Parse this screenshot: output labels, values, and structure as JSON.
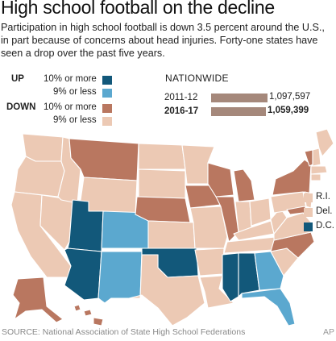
{
  "title": "High school football on the decline",
  "subtitle": "Participation in high school football is down 3.5 percent around the U.S., in part because of concerns about head injuries. Forty-one states have seen a drop over the past five years.",
  "legend": {
    "up_label": "UP",
    "down_label": "DOWN",
    "up_strong": "10% or more",
    "up_weak": "9% or less",
    "down_strong": "10% or more",
    "down_weak": "9% or less"
  },
  "colors": {
    "up_strong": "#12587a",
    "up_weak": "#5ba8cf",
    "down_strong": "#b97760",
    "down_weak": "#ecc9b4",
    "bar": "#a5887b"
  },
  "nationwide": {
    "heading": "NATIONWIDE",
    "rows": [
      {
        "label": "2011-12",
        "value": "1,097,597",
        "number": 1097597
      },
      {
        "label": "2016-17",
        "value": "1,059,399",
        "number": 1059399
      }
    ]
  },
  "small_states": [
    {
      "label": "R.I.",
      "category": "down_weak"
    },
    {
      "label": "Del.",
      "category": "down_weak"
    },
    {
      "label": "D.C.",
      "category": "up_strong"
    }
  ],
  "states": {
    "up_strong": [
      "Utah",
      "Arizona",
      "Oklahoma",
      "Mississippi",
      "Alabama",
      "D.C."
    ],
    "up_weak": [
      "Colorado",
      "Georgia",
      "Florida"
    ],
    "down_strong": [
      "Montana",
      "Nebraska",
      "Iowa",
      "Wisconsin",
      "Illinois",
      "Michigan",
      "New York",
      "Vermont",
      "Maryland",
      "North Carolina",
      "Alaska",
      "Hawaii"
    ]
  },
  "source": "SOURCE: National Association of State High School Federations",
  "credit": "AP"
}
